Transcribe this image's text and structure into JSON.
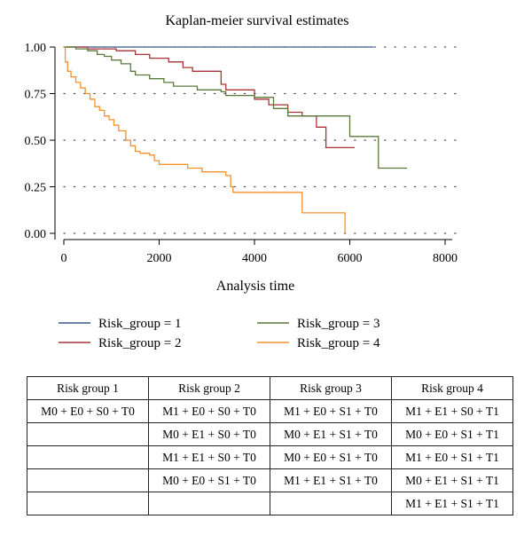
{
  "chart_data": {
    "type": "line",
    "step": true,
    "title": "Kaplan-meier survival estimates",
    "xlabel": "Analysis time",
    "ylabel": "",
    "xlim": [
      0,
      8000
    ],
    "ylim": [
      0,
      1
    ],
    "xticks": [
      "0",
      "2000",
      "4000",
      "6000",
      "8000"
    ],
    "yticks": [
      "0.00",
      "0.25",
      "0.50",
      "0.75",
      "1.00"
    ],
    "grid": "horizontal dotted",
    "legend_position": "bottom",
    "series": [
      {
        "name": "Risk_group = 1",
        "color": "#3a5a8c",
        "points": [
          [
            0,
            1.0
          ],
          [
            6500,
            1.0
          ]
        ]
      },
      {
        "name": "Risk_group = 2",
        "color": "#a83238",
        "points": [
          [
            0,
            1.0
          ],
          [
            500,
            0.99
          ],
          [
            1100,
            0.98
          ],
          [
            1500,
            0.96
          ],
          [
            1800,
            0.94
          ],
          [
            2200,
            0.92
          ],
          [
            2500,
            0.89
          ],
          [
            2700,
            0.87
          ],
          [
            3300,
            0.8
          ],
          [
            3400,
            0.77
          ],
          [
            4000,
            0.72
          ],
          [
            4300,
            0.69
          ],
          [
            4700,
            0.65
          ],
          [
            5000,
            0.63
          ],
          [
            5300,
            0.57
          ],
          [
            5500,
            0.46
          ],
          [
            6100,
            0.46
          ]
        ]
      },
      {
        "name": "Risk_group = 3",
        "color": "#5a7a3c",
        "points": [
          [
            0,
            1.0
          ],
          [
            250,
            0.99
          ],
          [
            500,
            0.98
          ],
          [
            700,
            0.96
          ],
          [
            850,
            0.95
          ],
          [
            1000,
            0.93
          ],
          [
            1200,
            0.91
          ],
          [
            1400,
            0.87
          ],
          [
            1500,
            0.85
          ],
          [
            1800,
            0.83
          ],
          [
            2100,
            0.81
          ],
          [
            2300,
            0.79
          ],
          [
            2800,
            0.77
          ],
          [
            3300,
            0.76
          ],
          [
            3400,
            0.74
          ],
          [
            4000,
            0.73
          ],
          [
            4400,
            0.67
          ],
          [
            4700,
            0.63
          ],
          [
            6000,
            0.52
          ],
          [
            6600,
            0.35
          ],
          [
            7200,
            0.35
          ]
        ]
      },
      {
        "name": "Risk_group = 4",
        "color": "#f0922e",
        "points": [
          [
            0,
            1.0
          ],
          [
            30,
            0.92
          ],
          [
            80,
            0.87
          ],
          [
            150,
            0.84
          ],
          [
            250,
            0.81
          ],
          [
            350,
            0.78
          ],
          [
            450,
            0.75
          ],
          [
            550,
            0.72
          ],
          [
            650,
            0.68
          ],
          [
            750,
            0.66
          ],
          [
            850,
            0.63
          ],
          [
            950,
            0.61
          ],
          [
            1050,
            0.58
          ],
          [
            1150,
            0.55
          ],
          [
            1300,
            0.5
          ],
          [
            1400,
            0.47
          ],
          [
            1500,
            0.44
          ],
          [
            1600,
            0.43
          ],
          [
            1800,
            0.42
          ],
          [
            1900,
            0.39
          ],
          [
            2000,
            0.37
          ],
          [
            2600,
            0.35
          ],
          [
            2900,
            0.33
          ],
          [
            3400,
            0.31
          ],
          [
            3500,
            0.25
          ],
          [
            3550,
            0.22
          ],
          [
            5000,
            0.11
          ],
          [
            5800,
            0.11
          ],
          [
            5900,
            0.0
          ]
        ]
      }
    ]
  },
  "table": {
    "headers": [
      "Risk group 1",
      "Risk group 2",
      "Risk group 3",
      "Risk group 4"
    ],
    "rows": [
      [
        "M0 + E0 + S0 + T0",
        "M1 + E0 + S0 + T0",
        "M1 + E0 + S1 + T0",
        "M1 + E1 + S0 + T1"
      ],
      [
        "",
        "M0 + E1 + S0 + T0",
        "M0 + E1 + S1 + T0",
        "M0 + E0 + S1 + T1"
      ],
      [
        "",
        "M1 + E1 + S0 + T0",
        "M0 + E0 + S1 + T0",
        "M1 + E0 + S1 + T1"
      ],
      [
        "",
        "M0 + E0 + S1 + T0",
        "M1 + E1 + S1 + T0",
        "M0 + E1 + S1 + T1"
      ],
      [
        "",
        "",
        "",
        "M1 + E1 + S1 + T1"
      ]
    ]
  }
}
